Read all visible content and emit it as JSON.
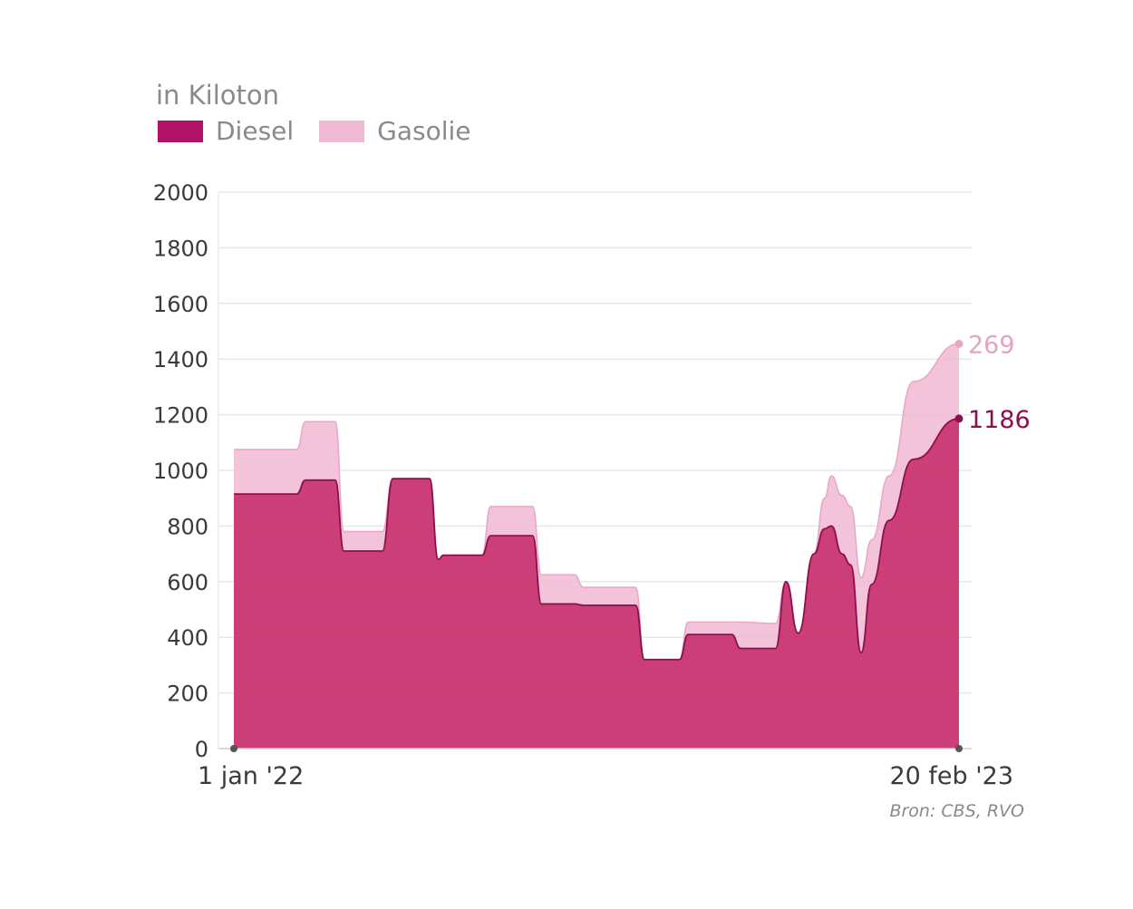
{
  "chart_data": {
    "type": "area",
    "stacked": true,
    "ylabel": "in Kiloton",
    "ylim": [
      0,
      2000
    ],
    "yticks": [
      0,
      200,
      400,
      600,
      800,
      1000,
      1200,
      1400,
      1600,
      1800,
      2000
    ],
    "x_range": [
      "2022-01-01",
      "2023-02-20"
    ],
    "xticks": [
      "1 jan '22",
      "20 feb '23"
    ],
    "grid": true,
    "legend_position": "top-left",
    "series": [
      {
        "name": "Diesel",
        "color": "#c2185b",
        "end_label": "1186",
        "points": [
          [
            "2022-01-01",
            915
          ],
          [
            "2022-01-08",
            915
          ],
          [
            "2022-02-06",
            915
          ],
          [
            "2022-02-11",
            965
          ],
          [
            "2022-02-28",
            965
          ],
          [
            "2022-03-05",
            710
          ],
          [
            "2022-03-27",
            710
          ],
          [
            "2022-04-02",
            970
          ],
          [
            "2022-04-23",
            970
          ],
          [
            "2022-04-28",
            680
          ],
          [
            "2022-05-01",
            695
          ],
          [
            "2022-05-23",
            695
          ],
          [
            "2022-05-28",
            765
          ],
          [
            "2022-06-21",
            765
          ],
          [
            "2022-06-26",
            520
          ],
          [
            "2022-07-15",
            520
          ],
          [
            "2022-07-20",
            515
          ],
          [
            "2022-08-19",
            515
          ],
          [
            "2022-08-24",
            320
          ],
          [
            "2022-09-13",
            320
          ],
          [
            "2022-09-18",
            410
          ],
          [
            "2022-10-13",
            410
          ],
          [
            "2022-10-18",
            360
          ],
          [
            "2022-11-07",
            360
          ],
          [
            "2022-11-13",
            600
          ],
          [
            "2022-11-20",
            415
          ],
          [
            "2022-11-29",
            700
          ],
          [
            "2022-12-05",
            790
          ],
          [
            "2022-12-09",
            800
          ],
          [
            "2022-12-15",
            700
          ],
          [
            "2022-12-20",
            660
          ],
          [
            "2022-12-26",
            345
          ],
          [
            "2023-01-01",
            590
          ],
          [
            "2023-01-11",
            820
          ],
          [
            "2023-01-25",
            1040
          ],
          [
            "2023-02-20",
            1186
          ]
        ]
      },
      {
        "name": "Gasolie",
        "color": "#f0b8d2",
        "end_label": "269",
        "points": [
          [
            "2022-01-01",
            160
          ],
          [
            "2022-01-08",
            160
          ],
          [
            "2022-02-06",
            160
          ],
          [
            "2022-02-11",
            210
          ],
          [
            "2022-02-28",
            210
          ],
          [
            "2022-03-05",
            70
          ],
          [
            "2022-03-27",
            70
          ],
          [
            "2022-04-02",
            0
          ],
          [
            "2022-04-23",
            0
          ],
          [
            "2022-04-28",
            0
          ],
          [
            "2022-05-01",
            0
          ],
          [
            "2022-05-23",
            0
          ],
          [
            "2022-05-28",
            105
          ],
          [
            "2022-06-21",
            105
          ],
          [
            "2022-06-26",
            105
          ],
          [
            "2022-07-15",
            105
          ],
          [
            "2022-07-20",
            65
          ],
          [
            "2022-08-19",
            65
          ],
          [
            "2022-08-24",
            0
          ],
          [
            "2022-09-13",
            0
          ],
          [
            "2022-09-18",
            45
          ],
          [
            "2022-10-13",
            45
          ],
          [
            "2022-10-18",
            95
          ],
          [
            "2022-11-07",
            90
          ],
          [
            "2022-11-13",
            0
          ],
          [
            "2022-11-20",
            0
          ],
          [
            "2022-11-29",
            0
          ],
          [
            "2022-12-05",
            110
          ],
          [
            "2022-12-09",
            180
          ],
          [
            "2022-12-15",
            210
          ],
          [
            "2022-12-20",
            210
          ],
          [
            "2022-12-26",
            270
          ],
          [
            "2023-01-01",
            160
          ],
          [
            "2023-01-11",
            160
          ],
          [
            "2023-01-25",
            280
          ],
          [
            "2023-02-20",
            269
          ]
        ]
      }
    ]
  },
  "source": "Bron: CBS, RVO"
}
